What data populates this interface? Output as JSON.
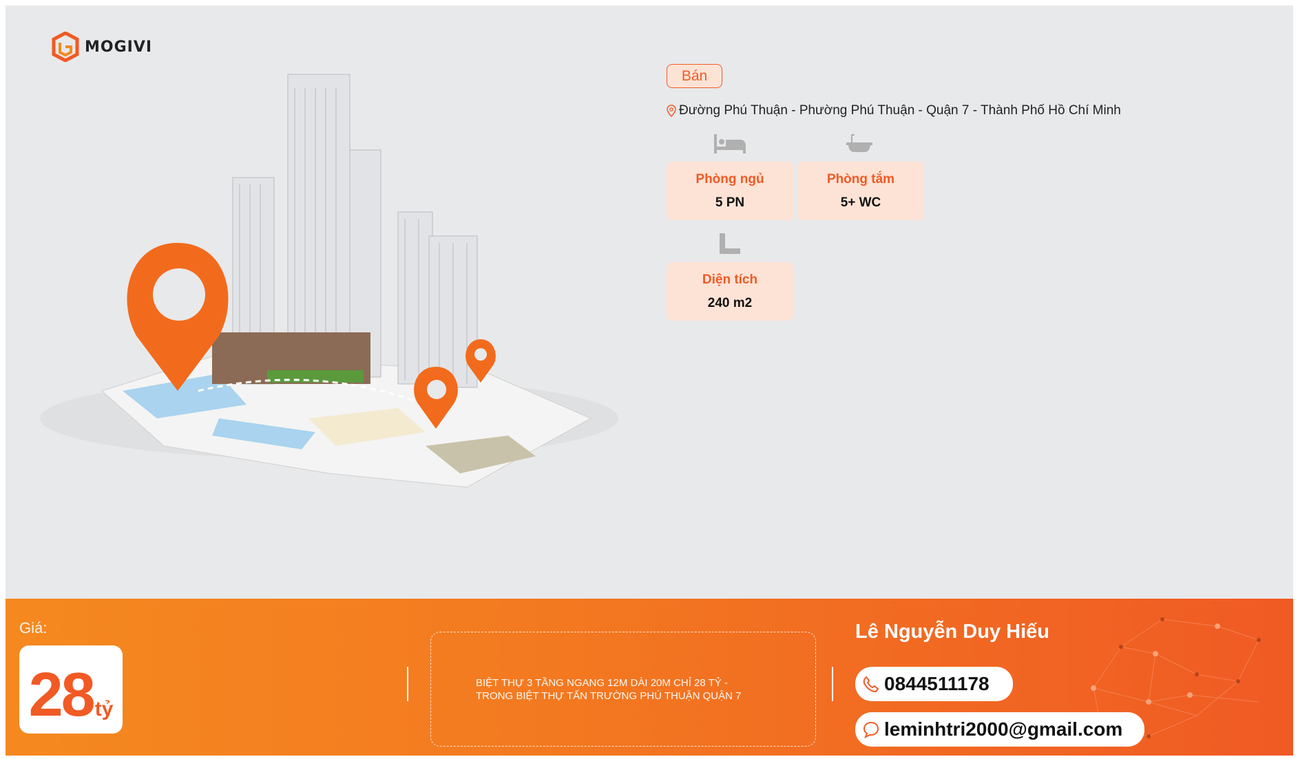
{
  "brand": {
    "name": "MOGIVI",
    "accent": "#f15a24"
  },
  "listing": {
    "type": "Bán",
    "address": "Đường Phú Thuận - Phường Phú Thuận - Quận 7 - Thành Phố Hồ Chí Minh",
    "features": [
      {
        "icon": "bed-icon",
        "label": "Phòng ngủ",
        "value": "5 PN"
      },
      {
        "icon": "bathtub-icon",
        "label": "Phòng tắm",
        "value": "5+ WC"
      },
      {
        "icon": "ruler-icon",
        "label": "Diện tích",
        "value": "240 m2"
      }
    ]
  },
  "footer": {
    "price_label": "Giá:",
    "price_value": "28",
    "price_unit": "tỷ",
    "description": "BIỆT THỰ 3 TẦNG NGANG 12M DÀI 20M CHỈ 28 TỶ - TRONG BIỆT THỰ TẤN TRƯỜNG PHÚ THUẬN QUẬN 7",
    "agent_name": "Lê Nguyễn Duy Hiếu",
    "phone": "0844511178",
    "email": "leminhtri2000@gmail.com"
  }
}
